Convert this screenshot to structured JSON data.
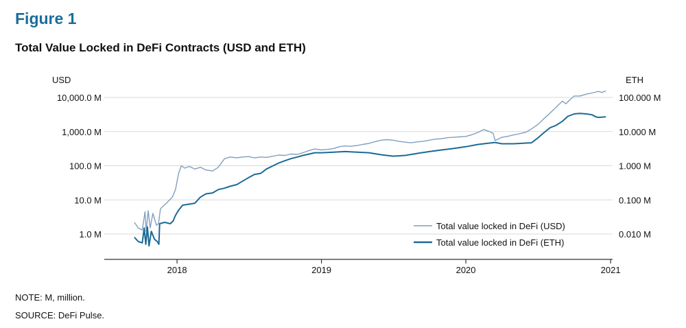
{
  "figure_label": "Figure 1",
  "title": "Total Value Locked in DeFi Contracts (USD and ETH)",
  "note": "NOTE: M, million.",
  "source": "SOURCE: DeFi Pulse.",
  "colors": {
    "usd": "#7f9fbf",
    "eth": "#1a6a96",
    "grid": "#d9d9d9",
    "axis": "#333333",
    "heading": "#1b6d9a"
  },
  "chart_data": {
    "type": "line",
    "left_axis_label": "USD",
    "right_axis_label": "ETH",
    "y_scale": "log",
    "left_ticks": [
      {
        "value": 1,
        "label": "1.0 M"
      },
      {
        "value": 10,
        "label": "10.0 M"
      },
      {
        "value": 100,
        "label": "100.0 M"
      },
      {
        "value": 1000,
        "label": "1,000.0 M"
      },
      {
        "value": 10000,
        "label": "10,000.0 M"
      }
    ],
    "right_ticks": [
      {
        "value": 0.01,
        "label": "0.010 M"
      },
      {
        "value": 0.1,
        "label": "0.100 M"
      },
      {
        "value": 1,
        "label": "1.000 M"
      },
      {
        "value": 10,
        "label": "10.000 M"
      },
      {
        "value": 100,
        "label": "100.000 M"
      }
    ],
    "left_ylim": [
      0.5,
      18000
    ],
    "right_ylim": [
      0.005,
      180
    ],
    "x_ticks": [
      "2018",
      "2019",
      "2020",
      "2021"
    ],
    "xlim": [
      "2017-07-01",
      "2021-01-06"
    ],
    "grid": true,
    "legend_position": "bottom-right",
    "series": [
      {
        "name": "Total value locked in DeFi (USD)",
        "axis": "left",
        "points": [
          [
            "2017-09-15",
            2.2
          ],
          [
            "2017-09-25",
            1.5
          ],
          [
            "2017-10-05",
            1.3
          ],
          [
            "2017-10-12",
            4.5
          ],
          [
            "2017-10-15",
            1.2
          ],
          [
            "2017-10-20",
            4.8
          ],
          [
            "2017-10-25",
            1.5
          ],
          [
            "2017-11-01",
            4.0
          ],
          [
            "2017-11-10",
            1.8
          ],
          [
            "2017-11-15",
            2.0
          ],
          [
            "2017-11-20",
            5.5
          ],
          [
            "2017-12-05",
            8
          ],
          [
            "2017-12-20",
            12
          ],
          [
            "2017-12-28",
            20
          ],
          [
            "2018-01-05",
            60
          ],
          [
            "2018-01-12",
            100
          ],
          [
            "2018-01-20",
            85
          ],
          [
            "2018-02-01",
            95
          ],
          [
            "2018-02-15",
            80
          ],
          [
            "2018-03-01",
            90
          ],
          [
            "2018-03-15",
            75
          ],
          [
            "2018-04-01",
            70
          ],
          [
            "2018-04-15",
            90
          ],
          [
            "2018-05-01",
            160
          ],
          [
            "2018-05-15",
            180
          ],
          [
            "2018-06-01",
            170
          ],
          [
            "2018-06-15",
            180
          ],
          [
            "2018-07-01",
            185
          ],
          [
            "2018-07-15",
            170
          ],
          [
            "2018-08-01",
            180
          ],
          [
            "2018-08-15",
            175
          ],
          [
            "2018-09-01",
            190
          ],
          [
            "2018-09-15",
            205
          ],
          [
            "2018-10-01",
            200
          ],
          [
            "2018-10-15",
            220
          ],
          [
            "2018-11-01",
            215
          ],
          [
            "2018-11-15",
            240
          ],
          [
            "2018-12-01",
            280
          ],
          [
            "2018-12-15",
            310
          ],
          [
            "2019-01-01",
            290
          ],
          [
            "2019-01-15",
            300
          ],
          [
            "2019-02-01",
            320
          ],
          [
            "2019-02-15",
            360
          ],
          [
            "2019-03-01",
            380
          ],
          [
            "2019-03-15",
            370
          ],
          [
            "2019-04-01",
            390
          ],
          [
            "2019-04-15",
            420
          ],
          [
            "2019-05-01",
            450
          ],
          [
            "2019-05-15",
            500
          ],
          [
            "2019-06-01",
            560
          ],
          [
            "2019-06-15",
            580
          ],
          [
            "2019-07-01",
            560
          ],
          [
            "2019-07-15",
            520
          ],
          [
            "2019-08-01",
            490
          ],
          [
            "2019-08-15",
            470
          ],
          [
            "2019-09-01",
            500
          ],
          [
            "2019-09-15",
            520
          ],
          [
            "2019-10-01",
            560
          ],
          [
            "2019-10-15",
            600
          ],
          [
            "2019-11-01",
            620
          ],
          [
            "2019-11-15",
            660
          ],
          [
            "2019-12-01",
            680
          ],
          [
            "2019-12-15",
            700
          ],
          [
            "2020-01-01",
            720
          ],
          [
            "2020-01-15",
            800
          ],
          [
            "2020-02-01",
            950
          ],
          [
            "2020-02-15",
            1150
          ],
          [
            "2020-03-01",
            1000
          ],
          [
            "2020-03-10",
            880
          ],
          [
            "2020-03-15",
            550
          ],
          [
            "2020-04-01",
            680
          ],
          [
            "2020-04-15",
            720
          ],
          [
            "2020-05-01",
            800
          ],
          [
            "2020-05-15",
            860
          ],
          [
            "2020-06-01",
            960
          ],
          [
            "2020-06-15",
            1200
          ],
          [
            "2020-07-01",
            1600
          ],
          [
            "2020-07-15",
            2300
          ],
          [
            "2020-08-01",
            3500
          ],
          [
            "2020-08-15",
            5000
          ],
          [
            "2020-09-01",
            7800
          ],
          [
            "2020-09-10",
            6500
          ],
          [
            "2020-09-20",
            8500
          ],
          [
            "2020-10-01",
            11000
          ],
          [
            "2020-10-15",
            11000
          ],
          [
            "2020-11-01",
            12500
          ],
          [
            "2020-11-15",
            13500
          ],
          [
            "2020-11-25",
            14500
          ],
          [
            "2020-12-01",
            15000
          ],
          [
            "2020-12-10",
            14000
          ],
          [
            "2020-12-20",
            15500
          ]
        ]
      },
      {
        "name": "Total value locked in DeFi (ETH)",
        "axis": "right",
        "points": [
          [
            "2017-09-15",
            0.008
          ],
          [
            "2017-09-25",
            0.006
          ],
          [
            "2017-10-05",
            0.0055
          ],
          [
            "2017-10-10",
            0.015
          ],
          [
            "2017-10-14",
            0.005
          ],
          [
            "2017-10-18",
            0.016
          ],
          [
            "2017-10-22",
            0.0045
          ],
          [
            "2017-10-28",
            0.012
          ],
          [
            "2017-11-05",
            0.007
          ],
          [
            "2017-11-12",
            0.006
          ],
          [
            "2017-11-16",
            0.005
          ],
          [
            "2017-11-18",
            0.02
          ],
          [
            "2017-12-01",
            0.022
          ],
          [
            "2017-12-15",
            0.02
          ],
          [
            "2017-12-22",
            0.024
          ],
          [
            "2017-12-28",
            0.035
          ],
          [
            "2018-01-05",
            0.05
          ],
          [
            "2018-01-15",
            0.07
          ],
          [
            "2018-02-01",
            0.075
          ],
          [
            "2018-02-15",
            0.08
          ],
          [
            "2018-03-01",
            0.12
          ],
          [
            "2018-03-15",
            0.15
          ],
          [
            "2018-04-01",
            0.16
          ],
          [
            "2018-04-15",
            0.2
          ],
          [
            "2018-05-01",
            0.22
          ],
          [
            "2018-05-15",
            0.25
          ],
          [
            "2018-06-01",
            0.28
          ],
          [
            "2018-06-15",
            0.35
          ],
          [
            "2018-07-01",
            0.45
          ],
          [
            "2018-07-15",
            0.55
          ],
          [
            "2018-08-01",
            0.6
          ],
          [
            "2018-08-15",
            0.8
          ],
          [
            "2018-09-01",
            1.0
          ],
          [
            "2018-09-15",
            1.2
          ],
          [
            "2018-10-01",
            1.4
          ],
          [
            "2018-10-15",
            1.6
          ],
          [
            "2018-11-01",
            1.8
          ],
          [
            "2018-11-15",
            2.0
          ],
          [
            "2018-12-01",
            2.2
          ],
          [
            "2018-12-15",
            2.4
          ],
          [
            "2019-01-01",
            2.4
          ],
          [
            "2019-02-01",
            2.5
          ],
          [
            "2019-03-01",
            2.6
          ],
          [
            "2019-04-01",
            2.5
          ],
          [
            "2019-05-01",
            2.4
          ],
          [
            "2019-06-01",
            2.1
          ],
          [
            "2019-07-01",
            1.9
          ],
          [
            "2019-08-01",
            2.0
          ],
          [
            "2019-09-01",
            2.3
          ],
          [
            "2019-10-01",
            2.6
          ],
          [
            "2019-11-01",
            2.9
          ],
          [
            "2019-12-01",
            3.2
          ],
          [
            "2020-01-01",
            3.6
          ],
          [
            "2020-02-01",
            4.2
          ],
          [
            "2020-03-01",
            4.6
          ],
          [
            "2020-03-15",
            4.8
          ],
          [
            "2020-04-01",
            4.4
          ],
          [
            "2020-05-01",
            4.4
          ],
          [
            "2020-06-01",
            4.6
          ],
          [
            "2020-06-15",
            4.7
          ],
          [
            "2020-07-01",
            6.5
          ],
          [
            "2020-07-15",
            9
          ],
          [
            "2020-08-01",
            13
          ],
          [
            "2020-08-15",
            15
          ],
          [
            "2020-09-01",
            20
          ],
          [
            "2020-09-15",
            28
          ],
          [
            "2020-10-01",
            33
          ],
          [
            "2020-10-15",
            34
          ],
          [
            "2020-11-01",
            33
          ],
          [
            "2020-11-15",
            31
          ],
          [
            "2020-11-25",
            27
          ],
          [
            "2020-12-01",
            26
          ],
          [
            "2020-12-20",
            27
          ]
        ]
      }
    ]
  }
}
